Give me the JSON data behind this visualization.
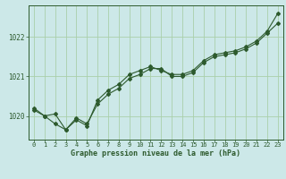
{
  "bg_color": "#cce8e8",
  "grid_color": "#aacfaa",
  "line_color": "#2d5a2d",
  "title": "Graphe pression niveau de la mer (hPa)",
  "xlim": [
    -0.5,
    23.5
  ],
  "ylim": [
    1019.4,
    1022.8
  ],
  "yticks": [
    1020,
    1021,
    1022
  ],
  "xticks": [
    0,
    1,
    2,
    3,
    4,
    5,
    6,
    7,
    8,
    9,
    10,
    11,
    12,
    13,
    14,
    15,
    16,
    17,
    18,
    19,
    20,
    21,
    22,
    23
  ],
  "series1_y": [
    1020.15,
    1020.0,
    1020.05,
    1019.65,
    1019.95,
    1019.8,
    1020.3,
    1020.55,
    1020.7,
    1020.95,
    1021.05,
    1021.2,
    1021.2,
    1021.0,
    1021.0,
    1021.1,
    1021.35,
    1021.5,
    1021.55,
    1021.6,
    1021.7,
    1021.85,
    1022.1,
    1022.35
  ],
  "series2_y": [
    1020.2,
    1020.0,
    1019.8,
    1019.65,
    1019.9,
    1019.75,
    1020.4,
    1020.65,
    1020.8,
    1021.05,
    1021.15,
    1021.25,
    1021.15,
    1021.05,
    1021.05,
    1021.15,
    1021.4,
    1021.55,
    1021.6,
    1021.65,
    1021.75,
    1021.9,
    1022.15,
    1022.6
  ]
}
